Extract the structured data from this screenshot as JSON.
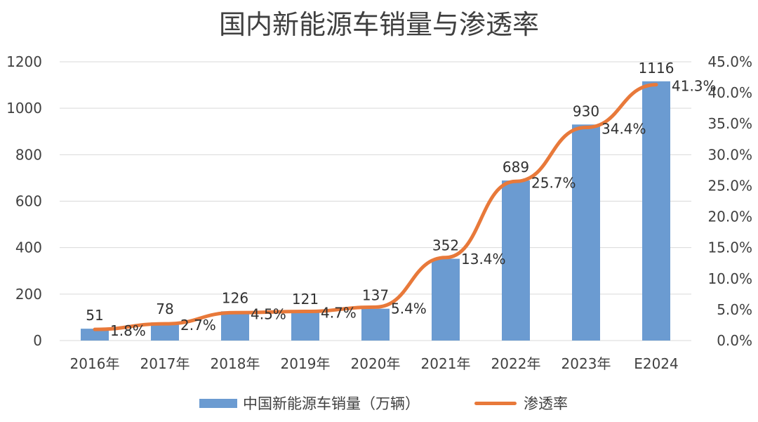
{
  "chart_data": {
    "type": "bar",
    "title": "国内新能源车销量与渗透率",
    "categories": [
      "2016年",
      "2017年",
      "2018年",
      "2019年",
      "2020年",
      "2021年",
      "2022年",
      "2023年",
      "E2024"
    ],
    "series": [
      {
        "name": "中国新能源车销量（万辆）",
        "type": "bar",
        "axis": "left",
        "values": [
          51,
          78,
          126,
          121,
          137,
          352,
          689,
          930,
          1116
        ]
      },
      {
        "name": "渗透率",
        "type": "line",
        "axis": "right",
        "values": [
          1.8,
          2.7,
          4.5,
          4.7,
          5.4,
          13.4,
          25.7,
          34.4,
          41.3
        ]
      }
    ],
    "bar_labels": [
      "51",
      "78",
      "126",
      "121",
      "137",
      "352",
      "689",
      "930",
      "1116"
    ],
    "line_labels": [
      "1.8%",
      "2.7%",
      "4.5%",
      "4.7%",
      "5.4%",
      "13.4%",
      "25.7%",
      "34.4%",
      "41.3%"
    ],
    "left_axis": {
      "ylim": [
        0,
        1200
      ],
      "ticks": [
        "0",
        "200",
        "400",
        "600",
        "800",
        "1000",
        "1200"
      ]
    },
    "right_axis": {
      "ylim": [
        0,
        45
      ],
      "ticks": [
        "0.0%",
        "5.0%",
        "10.0%",
        "15.0%",
        "20.0%",
        "25.0%",
        "30.0%",
        "35.0%",
        "40.0%",
        "45.0%"
      ]
    },
    "grid": true,
    "legend_position": "bottom",
    "colors": {
      "bar": "#6B9BD1",
      "line": "#E8793A",
      "grid": "#D9D9D9"
    }
  }
}
